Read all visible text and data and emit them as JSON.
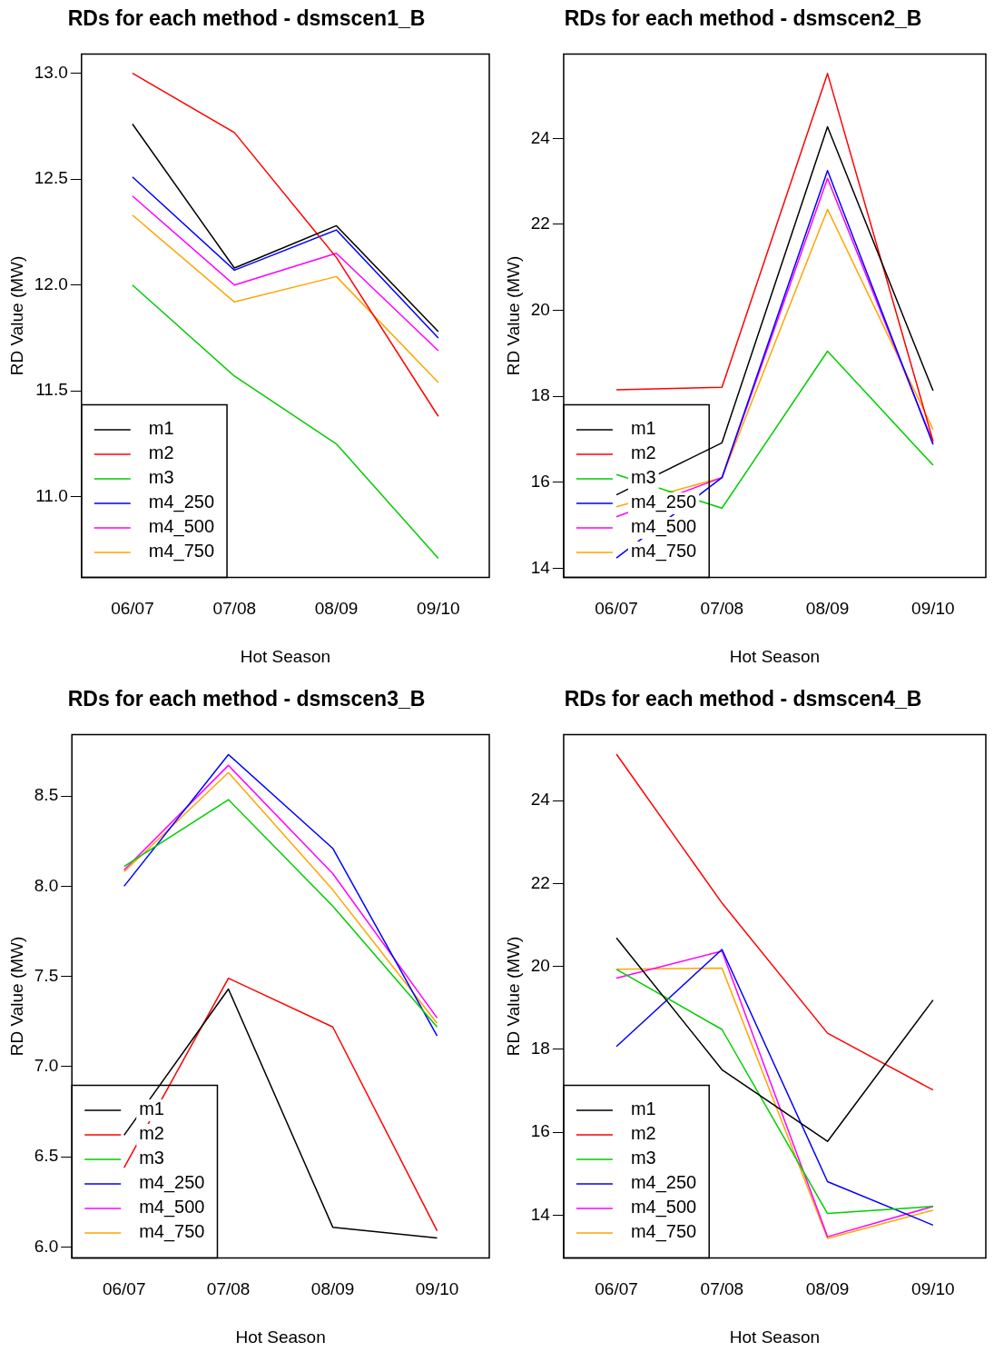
{
  "chart_data": [
    {
      "type": "line",
      "title": "RDs for each method - dsmscen1_B",
      "xlabel": "Hot Season",
      "ylabel": "RD Value (MW)",
      "categories": [
        "06/07",
        "07/08",
        "08/09",
        "09/10"
      ],
      "legend": "bottom left",
      "grid": false,
      "ylim": [
        10.62,
        13.09
      ],
      "yticks": [
        {
          "value": 11,
          "label": "11.0"
        },
        {
          "value": 11.5,
          "label": "11.5"
        },
        {
          "value": 12,
          "label": "12.0"
        },
        {
          "value": 12.5,
          "label": "12.5"
        },
        {
          "value": 13,
          "label": "13.0"
        }
      ],
      "series": [
        {
          "name": "m1",
          "color": "#000000",
          "values": [
            12.76,
            12.08,
            12.28,
            11.78
          ]
        },
        {
          "name": "m2",
          "color": "#ff0000",
          "values": [
            13.0,
            12.72,
            12.13,
            11.38
          ]
        },
        {
          "name": "m3",
          "color": "#00cd00",
          "values": [
            12.0,
            11.57,
            11.25,
            10.71
          ]
        },
        {
          "name": "m4_250",
          "color": "#0000ff",
          "values": [
            12.51,
            12.07,
            12.26,
            11.75
          ]
        },
        {
          "name": "m4_500",
          "color": "#ff00ff",
          "values": [
            12.42,
            12.0,
            12.15,
            11.69
          ]
        },
        {
          "name": "m4_750",
          "color": "#ffa500",
          "values": [
            12.33,
            11.92,
            12.04,
            11.54
          ]
        }
      ]
    },
    {
      "type": "line",
      "title": "RDs for each method - dsmscen2_B",
      "xlabel": "Hot Season",
      "ylabel": "RD Value (MW)",
      "categories": [
        "06/07",
        "07/08",
        "08/09",
        "09/10"
      ],
      "legend": "bottom left",
      "grid": false,
      "ylim": [
        13.79,
        25.96
      ],
      "yticks": [
        14,
        16,
        18,
        20,
        22,
        24
      ],
      "series": [
        {
          "name": "m1",
          "color": "#000000",
          "values": [
            15.71,
            16.92,
            24.27,
            18.13
          ]
        },
        {
          "name": "m2",
          "color": "#ff0000",
          "values": [
            18.15,
            18.21,
            25.51,
            16.96
          ]
        },
        {
          "name": "m3",
          "color": "#00cd00",
          "values": [
            16.18,
            15.4,
            19.05,
            16.4
          ]
        },
        {
          "name": "m4_250",
          "color": "#0000ff",
          "values": [
            14.24,
            16.11,
            23.25,
            16.88
          ]
        },
        {
          "name": "m4_500",
          "color": "#ff00ff",
          "values": [
            15.2,
            16.11,
            23.07,
            16.92
          ]
        },
        {
          "name": "m4_750",
          "color": "#ffa500",
          "values": [
            15.43,
            16.11,
            22.35,
            17.23
          ]
        }
      ]
    },
    {
      "type": "line",
      "title": "RDs for each method - dsmscen3_B",
      "xlabel": "Hot Season",
      "ylabel": "RD Value (MW)",
      "categories": [
        "06/07",
        "07/08",
        "08/09",
        "09/10"
      ],
      "legend": "bottom left",
      "grid": false,
      "ylim": [
        5.94,
        8.84
      ],
      "yticks": [
        {
          "value": 6,
          "label": "6.0"
        },
        {
          "value": 6.5,
          "label": "6.5"
        },
        {
          "value": 7,
          "label": "7.0"
        },
        {
          "value": 7.5,
          "label": "7.5"
        },
        {
          "value": 8,
          "label": "8.0"
        },
        {
          "value": 8.5,
          "label": "8.5"
        }
      ],
      "series": [
        {
          "name": "m1",
          "color": "#000000",
          "values": [
            6.62,
            7.43,
            6.11,
            6.05
          ]
        },
        {
          "name": "m2",
          "color": "#ff0000",
          "values": [
            6.44,
            7.49,
            7.22,
            6.09
          ]
        },
        {
          "name": "m3",
          "color": "#00cd00",
          "values": [
            8.11,
            8.48,
            7.89,
            7.22
          ]
        },
        {
          "name": "m4_250",
          "color": "#0000ff",
          "values": [
            8.0,
            8.73,
            8.21,
            7.17
          ]
        },
        {
          "name": "m4_500",
          "color": "#ff00ff",
          "values": [
            8.09,
            8.67,
            8.07,
            7.27
          ]
        },
        {
          "name": "m4_750",
          "color": "#ffa500",
          "values": [
            8.08,
            8.63,
            7.98,
            7.24
          ]
        }
      ]
    },
    {
      "type": "line",
      "title": "RDs for each method - dsmscen4_B",
      "xlabel": "Hot Season",
      "ylabel": "RD Value (MW)",
      "categories": [
        "06/07",
        "07/08",
        "08/09",
        "09/10"
      ],
      "legend": "bottom left",
      "grid": false,
      "ylim": [
        12.97,
        25.59
      ],
      "yticks": [
        14,
        16,
        18,
        20,
        22,
        24
      ],
      "series": [
        {
          "name": "m1",
          "color": "#000000",
          "values": [
            20.69,
            17.51,
            15.78,
            19.19
          ]
        },
        {
          "name": "m2",
          "color": "#ff0000",
          "values": [
            25.12,
            21.53,
            18.39,
            17.02
          ]
        },
        {
          "name": "m3",
          "color": "#00cd00",
          "values": [
            19.93,
            18.48,
            14.04,
            14.21
          ]
        },
        {
          "name": "m4_250",
          "color": "#0000ff",
          "values": [
            18.07,
            20.41,
            14.81,
            13.76
          ]
        },
        {
          "name": "m4_500",
          "color": "#ff00ff",
          "values": [
            19.72,
            20.37,
            13.48,
            14.21
          ]
        },
        {
          "name": "m4_750",
          "color": "#ffa500",
          "values": [
            19.93,
            19.96,
            13.44,
            14.12
          ]
        }
      ]
    }
  ]
}
